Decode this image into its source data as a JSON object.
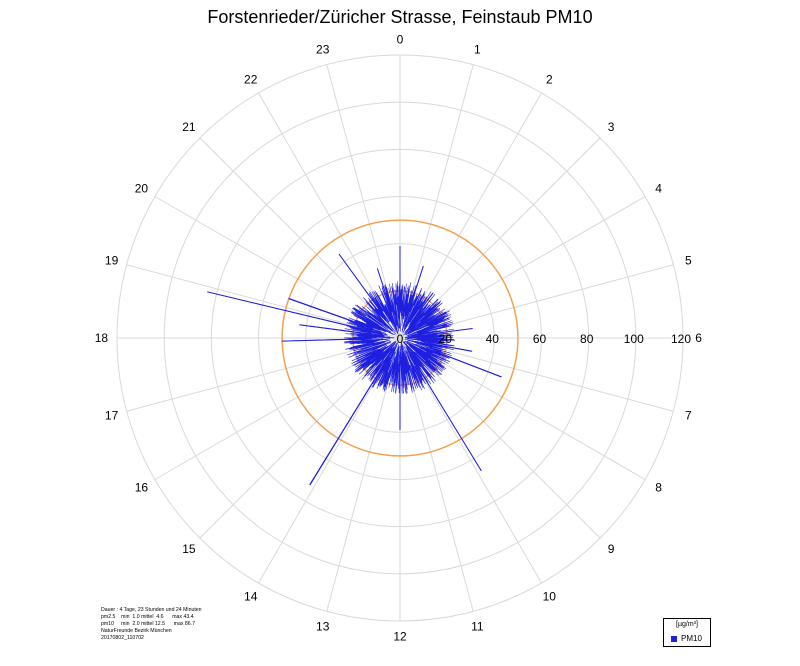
{
  "chart_data": {
    "type": "polar",
    "title": "Forstenrieder/Züricher Strasse, Feinstaub PM10",
    "angular_axis": {
      "labels": [
        "0",
        "1",
        "2",
        "3",
        "4",
        "5",
        "6",
        "7",
        "8",
        "9",
        "10",
        "11",
        "12",
        "13",
        "14",
        "15",
        "16",
        "17",
        "18",
        "19",
        "20",
        "21",
        "22",
        "23"
      ]
    },
    "radial_axis": {
      "range": [
        0,
        120
      ],
      "ticks": [
        0,
        20,
        40,
        60,
        80,
        100,
        120
      ],
      "tick_labels": [
        "0",
        "20",
        "40",
        "60",
        "80",
        "100",
        "120"
      ],
      "grid": true
    },
    "reference_circles": [
      {
        "value": 20,
        "color": "#f4a04f"
      },
      {
        "value": 50,
        "color": "#f4a04f"
      }
    ],
    "series": [
      {
        "name": "PM10",
        "color": "#1f1fe0",
        "typical_range": [
          8,
          24
        ],
        "spikes": [
          {
            "x": 0.0,
            "y": 39
          },
          {
            "x": 1.2,
            "y": 32
          },
          {
            "x": 5.5,
            "y": 31
          },
          {
            "x": 6.7,
            "y": 31
          },
          {
            "x": 7.4,
            "y": 46
          },
          {
            "x": 9.9,
            "y": 66
          },
          {
            "x": 12.0,
            "y": 39
          },
          {
            "x": 14.1,
            "y": 73
          },
          {
            "x": 17.9,
            "y": 50
          },
          {
            "x": 18.5,
            "y": 43
          },
          {
            "x": 18.9,
            "y": 84
          },
          {
            "x": 19.3,
            "y": 50
          },
          {
            "x": 21.6,
            "y": 44
          },
          {
            "x": 22.8,
            "y": 31
          }
        ]
      }
    ],
    "legend": {
      "position": "bottom-right",
      "unit": "[µg/m³]",
      "entries": [
        "PM10"
      ]
    },
    "annotation": [
      "Dauer : 4 Tage, 23 Stunden und 24 Minuten",
      "pm2.5    min  1.0 mittel  4.6      max 43.4",
      "pm10     min  2.0 mittel 12.5      max 86.7",
      "NaturFreunde Bezirk München",
      "20170802_110702"
    ],
    "colors": {
      "grid": "#d9d9d9",
      "reference": "#f4a04f",
      "series": "#1f1fe0"
    }
  }
}
